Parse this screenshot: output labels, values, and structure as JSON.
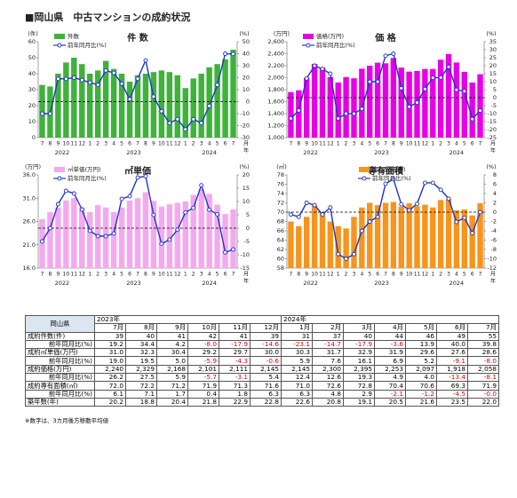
{
  "title": "■岡山県　中古マンションの成約状況",
  "chart_data": [
    {
      "type": "combo",
      "title": "件 数",
      "ylabel": "(件)",
      "y2label": "(%)",
      "xunit": [
        "月",
        "年"
      ],
      "categories": [
        "7",
        "8",
        "9",
        "10",
        "11",
        "12",
        "1",
        "2",
        "3",
        "4",
        "5",
        "6",
        "7",
        "8",
        "9",
        "10",
        "11",
        "12",
        "1",
        "2",
        "3",
        "4",
        "5",
        "6",
        "7"
      ],
      "years": [
        "2022",
        "2023",
        "2024"
      ],
      "series": [
        {
          "name": "件数",
          "kind": "bar",
          "color": "#3db33a",
          "values": [
            33,
            32,
            40,
            47,
            50,
            46,
            40,
            42,
            48,
            43,
            40,
            35,
            39,
            40,
            41,
            42,
            41,
            39,
            31,
            37,
            40,
            44,
            46,
            49,
            55
          ]
        },
        {
          "name": "前年同月比(%)",
          "kind": "line",
          "axis": "y2",
          "color": "#1f35c4",
          "values": [
            -10,
            -10,
            19,
            19,
            20,
            18,
            16,
            14,
            26,
            24,
            15,
            2,
            19.2,
            34.4,
            4.2,
            -8.0,
            -17.9,
            -14.6,
            -23.1,
            -14.7,
            -17.9,
            -3.6,
            13.9,
            40.0,
            39.8
          ]
        }
      ],
      "ylim": [
        0,
        60
      ],
      "yticks": [
        0,
        10,
        20,
        30,
        40,
        50,
        60
      ],
      "y2lim": [
        -30,
        50
      ],
      "y2ticks": [
        -30,
        -20,
        -10,
        0,
        10,
        20,
        30,
        40,
        50
      ],
      "y2_refline": 0,
      "legend": "top-left"
    },
    {
      "type": "combo",
      "title": "価 格",
      "ylabel": "(万円)",
      "y2label": "(%)",
      "xunit": [
        "月",
        "年"
      ],
      "categories": [
        "7",
        "8",
        "9",
        "10",
        "11",
        "12",
        "1",
        "2",
        "3",
        "4",
        "5",
        "6",
        "7",
        "8",
        "9",
        "10",
        "11",
        "12",
        "1",
        "2",
        "3",
        "4",
        "5",
        "6",
        "7"
      ],
      "years": [
        "2022",
        "2023",
        "2024"
      ],
      "series": [
        {
          "name": "価格(万円)",
          "kind": "bar",
          "color": "#e600e6",
          "values": [
            1760,
            1790,
            2000,
            2230,
            2170,
            2010,
            1920,
            2010,
            1990,
            2150,
            2200,
            2250,
            2240,
            2329,
            2168,
            2101,
            2111,
            2145,
            2145,
            2300,
            2395,
            2253,
            2097,
            1918,
            2058
          ]
        },
        {
          "name": "前年同月比(%)",
          "kind": "line",
          "axis": "y2",
          "color": "#1f35c4",
          "values": [
            -13,
            -8,
            12,
            20,
            18,
            15,
            -13,
            -10,
            -10,
            -7,
            10,
            10,
            26.2,
            27.5,
            5.9,
            -5.7,
            -3.1,
            5.4,
            12.4,
            12.6,
            19.3,
            4.9,
            4.0,
            -13.4,
            -8.1
          ]
        }
      ],
      "ylim": [
        1000,
        2600
      ],
      "yticks": [
        {
          "value": 1000,
          "label": "1,000"
        },
        {
          "value": 1200,
          "label": "1,200"
        },
        {
          "value": 1400,
          "label": "1,400"
        },
        {
          "value": 1600,
          "label": "1,600"
        },
        {
          "value": 1800,
          "label": "1,800"
        },
        {
          "value": 2000,
          "label": "2,000"
        },
        {
          "value": 2200,
          "label": "2,200"
        },
        {
          "value": 2400,
          "label": "2,400"
        },
        {
          "value": 2600,
          "label": "2,600"
        }
      ],
      "y2lim": [
        -25,
        35
      ],
      "y2ticks": [
        -25,
        -20,
        -15,
        -10,
        -5,
        0,
        5,
        10,
        15,
        20,
        25,
        30,
        35
      ],
      "y2_refline": 0,
      "legend": "top-left"
    },
    {
      "type": "combo",
      "title": "㎡単価",
      "ylabel": "(万円)",
      "y2label": "(%)",
      "xunit": [
        "月",
        "年"
      ],
      "categories": [
        "7",
        "8",
        "9",
        "10",
        "11",
        "12",
        "1",
        "2",
        "3",
        "4",
        "5",
        "6",
        "7",
        "8",
        "9",
        "10",
        "11",
        "12",
        "1",
        "2",
        "3",
        "4",
        "5",
        "6",
        "7"
      ],
      "years": [
        "2022",
        "2023",
        "2024"
      ],
      "series": [
        {
          "name": "㎡単価(万円)",
          "kind": "bar",
          "color": "#f5a8f0",
          "values": [
            26.5,
            28,
            29,
            30.5,
            31,
            29,
            28,
            29.5,
            29,
            28,
            29,
            30.5,
            31.0,
            32.3,
            30.4,
            29.2,
            29.7,
            30.0,
            30.3,
            31.7,
            32.9,
            31.9,
            29.6,
            27.6,
            28.6
          ]
        },
        {
          "name": "前年同月比(%)",
          "kind": "line",
          "axis": "y2",
          "color": "#1f35c4",
          "values": [
            -5,
            0,
            9,
            14,
            13,
            7,
            -1,
            -3,
            -3,
            -2,
            11,
            12,
            19.0,
            19.5,
            5.0,
            -5.9,
            -4.3,
            -0.6,
            5.9,
            7.6,
            16.1,
            6.9,
            5.2,
            -9.1,
            -8.0
          ]
        }
      ],
      "ylim": [
        16,
        36
      ],
      "yticks": [
        {
          "value": 16,
          "label": "16.0"
        },
        {
          "value": 21,
          "label": "21.0"
        },
        {
          "value": 26,
          "label": "26.0"
        },
        {
          "value": 31,
          "label": "31.0"
        },
        {
          "value": 36,
          "label": "36.0"
        }
      ],
      "y2lim": [
        -15,
        20
      ],
      "y2ticks": [
        -15,
        -10,
        -5,
        0,
        5,
        10,
        15,
        20
      ],
      "y2_refline": 0,
      "legend": "top-left"
    },
    {
      "type": "combo",
      "title": "専有面積",
      "ylabel": "(㎡)",
      "y2label": "(%)",
      "xunit": [
        "月",
        "年"
      ],
      "categories": [
        "7",
        "8",
        "9",
        "10",
        "11",
        "12",
        "1",
        "2",
        "3",
        "4",
        "5",
        "6",
        "7",
        "8",
        "9",
        "10",
        "11",
        "12",
        "1",
        "2",
        "3",
        "4",
        "5",
        "6",
        "7"
      ],
      "years": [
        "2022",
        "2023",
        "2024"
      ],
      "series": [
        {
          "name": "専有面積(㎡)",
          "kind": "bar",
          "color": "#f7941d",
          "values": [
            68,
            67,
            69,
            71.5,
            70,
            68,
            67,
            66.5,
            69,
            71,
            72,
            71.5,
            72.0,
            72.2,
            71.2,
            71.9,
            71.3,
            71.6,
            71.0,
            72.6,
            72.8,
            70.4,
            70.6,
            69.3,
            71.9
          ]
        },
        {
          "name": "前年同月比(%)",
          "kind": "line",
          "axis": "y2",
          "color": "#1f35c4",
          "values": [
            -0.5,
            -1,
            2,
            1.5,
            -0.5,
            1,
            -9,
            -10,
            -9,
            -4,
            -2,
            -1,
            6.1,
            7.1,
            1.7,
            0.4,
            1.8,
            6.3,
            6.3,
            4.8,
            2.9,
            -2.1,
            -1.2,
            -4.5,
            0
          ]
        }
      ],
      "ylim": [
        58,
        78
      ],
      "yticks": [
        58,
        60,
        62,
        64,
        66,
        68,
        70,
        72,
        74,
        76,
        78
      ],
      "y2lim": [
        -12,
        8
      ],
      "y2ticks": [
        -12,
        -10,
        -8,
        -6,
        -4,
        -2,
        0,
        2,
        4,
        6,
        8
      ],
      "y2_refline": 0,
      "legend": "top"
    }
  ],
  "table": {
    "corner": "岡山県",
    "columns": [
      {
        "year": "2023年",
        "months": [
          "7月",
          "8月",
          "9月",
          "10月",
          "11月",
          "12月"
        ]
      },
      {
        "year": "2024年",
        "months": [
          "1月",
          "2月",
          "3月",
          "4月",
          "5月",
          "6月",
          "7月"
        ]
      }
    ],
    "rows": [
      {
        "label": "成約件数(件)",
        "cells": [
          "39",
          "40",
          "41",
          "42",
          "41",
          "39",
          "31",
          "37",
          "40",
          "44",
          "46",
          "49",
          "55"
        ]
      },
      {
        "label": "前年同月比(%)",
        "cells": [
          "19.2",
          "34.4",
          "4.2",
          "-8.0",
          "-17.9",
          "-14.6",
          "-23.1",
          "-14.7",
          "-17.9",
          "-3.6",
          "13.9",
          "40.0",
          "39.8"
        ]
      },
      {
        "label": "成約㎡単価(万円)",
        "cells": [
          "31.0",
          "32.3",
          "30.4",
          "29.2",
          "29.7",
          "30.0",
          "30.3",
          "31.7",
          "32.9",
          "31.9",
          "29.6",
          "27.6",
          "28.6"
        ]
      },
      {
        "label": "前年同月比(%)",
        "cells": [
          "19.0",
          "19.5",
          "5.0",
          "-5.9",
          "-4.3",
          "-0.6",
          "5.9",
          "7.6",
          "16.1",
          "6.9",
          "5.2",
          "-9.1",
          "-8.0"
        ]
      },
      {
        "label": "成約価格(万円)",
        "cells": [
          "2,240",
          "2,329",
          "2,168",
          "2,101",
          "2,111",
          "2,145",
          "2,145",
          "2,300",
          "2,395",
          "2,253",
          "2,097",
          "1,918",
          "2,058"
        ]
      },
      {
        "label": "前年同月比(%)",
        "cells": [
          "26.2",
          "27.5",
          "5.9",
          "-5.7",
          "-3.1",
          "5.4",
          "12.4",
          "12.6",
          "19.3",
          "4.9",
          "4.0",
          "-13.4",
          "-8.1"
        ]
      },
      {
        "label": "成約専有面積(㎡)",
        "cells": [
          "72.0",
          "72.2",
          "71.2",
          "71.9",
          "71.3",
          "71.6",
          "71.0",
          "72.6",
          "72.8",
          "70.4",
          "70.6",
          "69.3",
          "71.9"
        ]
      },
      {
        "label": "前年同月比(%)",
        "cells": [
          "6.1",
          "7.1",
          "1.7",
          "0.4",
          "1.8",
          "6.3",
          "6.3",
          "4.8",
          "2.9",
          "-2.1",
          "-1.2",
          "-4.5",
          "-0.0"
        ]
      },
      {
        "label": "築年数(年)",
        "cells": [
          "20.2",
          "18.8",
          "20.4",
          "21.8",
          "22.9",
          "22.8",
          "22.6",
          "20.8",
          "19.1",
          "20.5",
          "21.6",
          "23.5",
          "22.0"
        ]
      }
    ]
  },
  "note": "※数字は、3カ月後方移動平均値"
}
